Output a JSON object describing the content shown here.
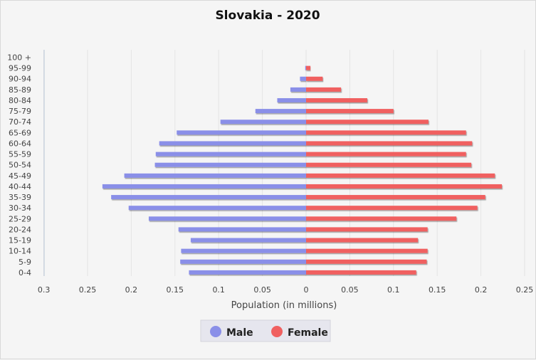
{
  "chart_data": {
    "type": "bar",
    "orientation": "horizontal",
    "title": "Slovakia - 2020",
    "xlabel": "Population (in millions)",
    "ylabel": "",
    "categories": [
      "0-4",
      "5-9",
      "10-14",
      "15-19",
      "20-24",
      "25-29",
      "30-34",
      "35-39",
      "40-44",
      "45-49",
      "50-54",
      "55-59",
      "60-64",
      "65-69",
      "70-74",
      "75-79",
      "80-84",
      "85-89",
      "90-94",
      "95-99",
      "100 +"
    ],
    "series": [
      {
        "name": "Male",
        "color": "#8a8fe8",
        "values": [
          0.134,
          0.144,
          0.143,
          0.132,
          0.146,
          0.18,
          0.203,
          0.223,
          0.233,
          0.208,
          0.173,
          0.172,
          0.168,
          0.148,
          0.098,
          0.058,
          0.033,
          0.018,
          0.007,
          0.001,
          0.0
        ]
      },
      {
        "name": "Female",
        "color": "#f06060",
        "values": [
          0.126,
          0.138,
          0.139,
          0.128,
          0.139,
          0.172,
          0.196,
          0.205,
          0.224,
          0.216,
          0.189,
          0.183,
          0.19,
          0.183,
          0.14,
          0.1,
          0.07,
          0.04,
          0.019,
          0.005,
          0.0
        ]
      }
    ],
    "xlim": [
      -0.3,
      0.25
    ],
    "xticks": [
      "0.3",
      "0.25",
      "0.2",
      "0.15",
      "0.1",
      "0.05",
      "0",
      "0.05",
      "0.1",
      "0.15",
      "0.2",
      "0.25"
    ],
    "grid": "vertical",
    "legend_position": "bottom"
  }
}
